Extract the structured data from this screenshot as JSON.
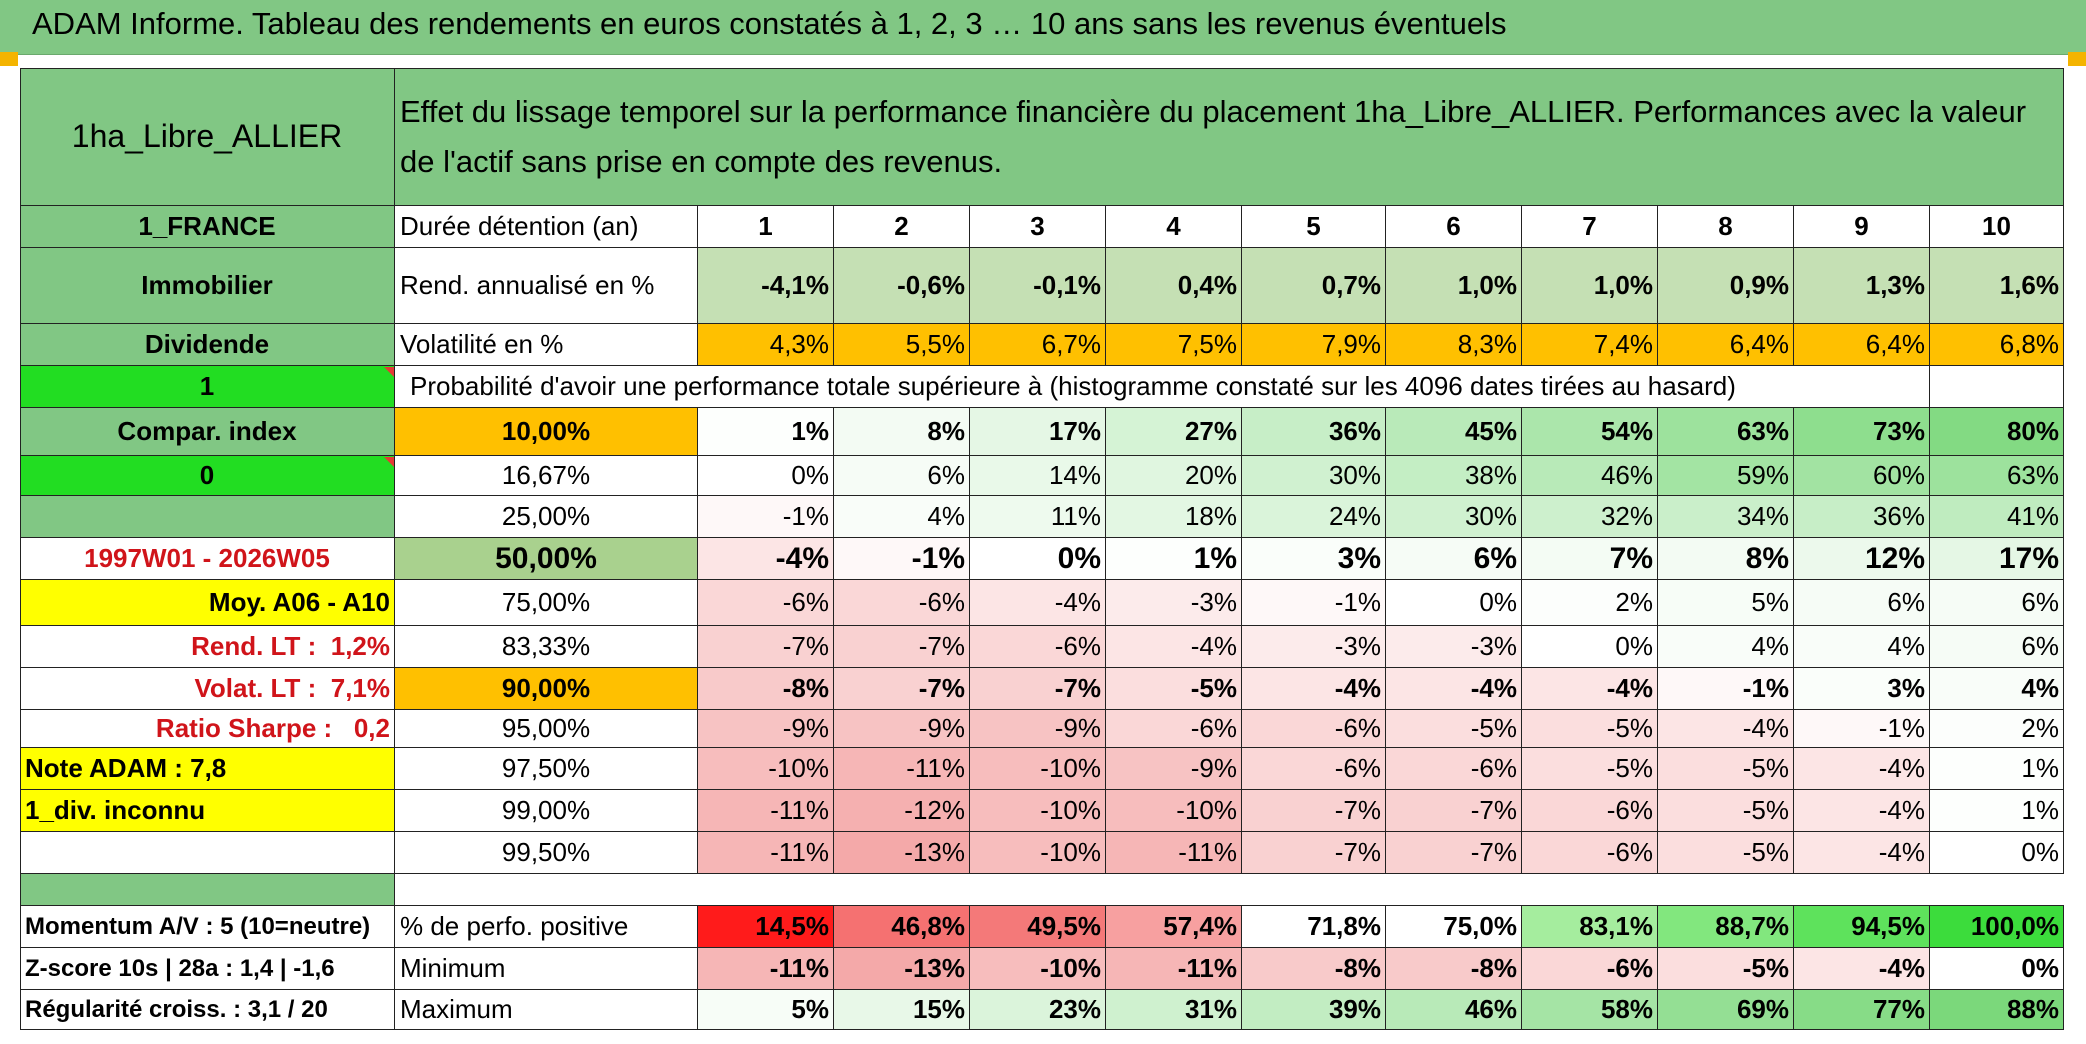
{
  "title": "ADAM Informe. Tableau des rendements en euros constatés à 1, 2, 3 … 10 ans sans les revenus éventuels",
  "placement_name": "1ha_Libre_ALLIER",
  "effect_description": "Effet du lissage temporel sur la performance financière du placement 1ha_Libre_ALLIER. Performances avec la valeur de l'actif sans prise en compte des revenus.",
  "side": {
    "country": "1_FRANCE",
    "category": "Immobilier",
    "type": "Dividende",
    "flag1": "1",
    "compar_index": "Compar. index",
    "flag0": "0",
    "period": "1997W01 - 2026W05",
    "moy": "Moy. A06 - A10",
    "rend_lt_label": "Rend. LT :",
    "rend_lt_value": "1,2%",
    "volat_lt_label": "Volat. LT :",
    "volat_lt_value": "7,1%",
    "sharpe_label": "Ratio Sharpe :",
    "sharpe_value": "0,2",
    "note_adam": "Note ADAM : 7,8",
    "div_inconnu": "1_div. inconnu",
    "momentum": "Momentum A/V : 5 (10=neutre)",
    "zscore": "Z-score 10s | 28a : 1,4 | -1,6",
    "regularite": "Régularité croiss. : 3,1 / 20"
  },
  "header": {
    "duration_label": "Durée détention (an)",
    "years": [
      "1",
      "2",
      "3",
      "4",
      "5",
      "6",
      "7",
      "8",
      "9",
      "10"
    ],
    "rend_label": "Rend. annualisé en %",
    "rend_values": [
      "-4,1%",
      "-0,6%",
      "-0,1%",
      "0,4%",
      "0,7%",
      "1,0%",
      "1,0%",
      "0,9%",
      "1,3%",
      "1,6%"
    ],
    "vol_label": "Volatilité en %",
    "vol_values": [
      "4,3%",
      "5,5%",
      "6,7%",
      "7,5%",
      "7,9%",
      "8,3%",
      "7,4%",
      "6,4%",
      "6,4%",
      "6,8%"
    ]
  },
  "probability_title": "Probabilité d'avoir une performance totale supérieure à (histogramme constaté sur les 4096 dates tirées au hasard)",
  "probability_rows": [
    {
      "level": "10,00%",
      "values": [
        "1%",
        "8%",
        "17%",
        "27%",
        "36%",
        "45%",
        "54%",
        "63%",
        "73%",
        "80%"
      ]
    },
    {
      "level": "16,67%",
      "values": [
        "0%",
        "6%",
        "14%",
        "20%",
        "30%",
        "38%",
        "46%",
        "59%",
        "60%",
        "63%"
      ]
    },
    {
      "level": "25,00%",
      "values": [
        "-1%",
        "4%",
        "11%",
        "18%",
        "24%",
        "30%",
        "32%",
        "34%",
        "36%",
        "41%"
      ]
    },
    {
      "level": "50,00%",
      "values": [
        "-4%",
        "-1%",
        "0%",
        "1%",
        "3%",
        "6%",
        "7%",
        "8%",
        "12%",
        "17%"
      ]
    },
    {
      "level": "75,00%",
      "values": [
        "-6%",
        "-6%",
        "-4%",
        "-3%",
        "-1%",
        "0%",
        "2%",
        "5%",
        "6%",
        "6%"
      ]
    },
    {
      "level": "83,33%",
      "values": [
        "-7%",
        "-7%",
        "-6%",
        "-4%",
        "-3%",
        "-3%",
        "0%",
        "4%",
        "4%",
        "6%"
      ]
    },
    {
      "level": "90,00%",
      "values": [
        "-8%",
        "-7%",
        "-7%",
        "-5%",
        "-4%",
        "-4%",
        "-4%",
        "-1%",
        "3%",
        "4%"
      ]
    },
    {
      "level": "95,00%",
      "values": [
        "-9%",
        "-9%",
        "-9%",
        "-6%",
        "-6%",
        "-5%",
        "-5%",
        "-4%",
        "-1%",
        "2%"
      ]
    },
    {
      "level": "97,50%",
      "values": [
        "-10%",
        "-11%",
        "-10%",
        "-9%",
        "-6%",
        "-6%",
        "-5%",
        "-5%",
        "-4%",
        "1%"
      ]
    },
    {
      "level": "99,00%",
      "values": [
        "-11%",
        "-12%",
        "-10%",
        "-10%",
        "-7%",
        "-7%",
        "-6%",
        "-5%",
        "-4%",
        "1%"
      ]
    },
    {
      "level": "99,50%",
      "values": [
        "-11%",
        "-13%",
        "-10%",
        "-11%",
        "-7%",
        "-7%",
        "-6%",
        "-5%",
        "-4%",
        "0%"
      ]
    }
  ],
  "summary": {
    "positive_label": "% de perfo. positive",
    "positive_values": [
      "14,5%",
      "46,8%",
      "49,5%",
      "57,4%",
      "71,8%",
      "75,0%",
      "83,1%",
      "88,7%",
      "94,5%",
      "100,0%"
    ],
    "min_label": "Minimum",
    "min_values": [
      "-11%",
      "-13%",
      "-10%",
      "-11%",
      "-8%",
      "-8%",
      "-6%",
      "-5%",
      "-4%",
      "0%"
    ],
    "max_label": "Maximum",
    "max_values": [
      "5%",
      "15%",
      "23%",
      "31%",
      "39%",
      "46%",
      "58%",
      "69%",
      "77%",
      "88%"
    ]
  },
  "colors": {
    "header_green": "#81c784",
    "rend_green": "#c5e0b4",
    "orange": "#ffc000",
    "bright_green": "#22dd22",
    "yellow": "#ffff00",
    "median_green": "#a9d18e"
  }
}
